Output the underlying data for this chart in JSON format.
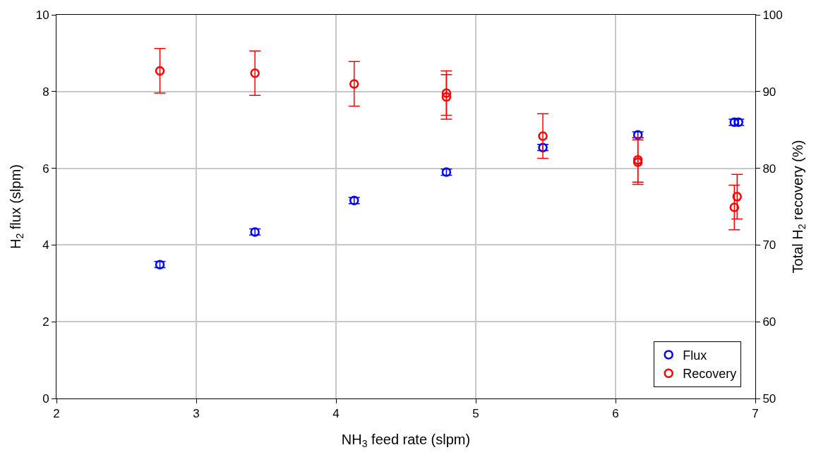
{
  "chart_data": {
    "type": "scatter",
    "xlabel": "NH$_{3}$ feed rate (slpm)",
    "ylabel": "H$_{2}$ flux (slpm)",
    "y2label": "Total H$_{2}$ recovery (%)",
    "xlim": [
      2,
      7
    ],
    "xticks": [
      2,
      3,
      4,
      5,
      6,
      7
    ],
    "ylim": [
      0,
      10
    ],
    "yticks": [
      0,
      2,
      4,
      6,
      8,
      10
    ],
    "y2lim": [
      50,
      100
    ],
    "y2ticks": [
      50,
      60,
      70,
      80,
      90,
      100
    ],
    "grid": true,
    "legend": "bottom right",
    "marker": "circle",
    "series": [
      {
        "name": "Flux",
        "color": "#0000ff",
        "x": [
          2.74,
          3.42,
          4.13,
          4.79,
          5.48,
          6.16,
          6.85,
          6.88
        ],
        "values": [
          3.49,
          4.34,
          5.16,
          5.9,
          6.54,
          6.87,
          7.2,
          7.2
        ],
        "errors": [
          0.08,
          0.08,
          0.08,
          0.08,
          0.08,
          0.08,
          0.08,
          0.08
        ]
      },
      {
        "name": "Recovery",
        "color": "#ff0000",
        "axis": "y2",
        "x": [
          2.74,
          3.42,
          4.13,
          4.79,
          4.79,
          5.48,
          6.16,
          6.16,
          6.85,
          6.87
        ],
        "values": [
          92.7,
          92.4,
          91.0,
          89.8,
          89.3,
          84.2,
          81.1,
          80.8,
          74.9,
          76.3
        ],
        "errors": [
          2.9,
          2.9,
          2.9,
          2.9,
          2.9,
          2.9,
          2.9,
          2.9,
          2.9,
          2.9
        ]
      }
    ]
  }
}
